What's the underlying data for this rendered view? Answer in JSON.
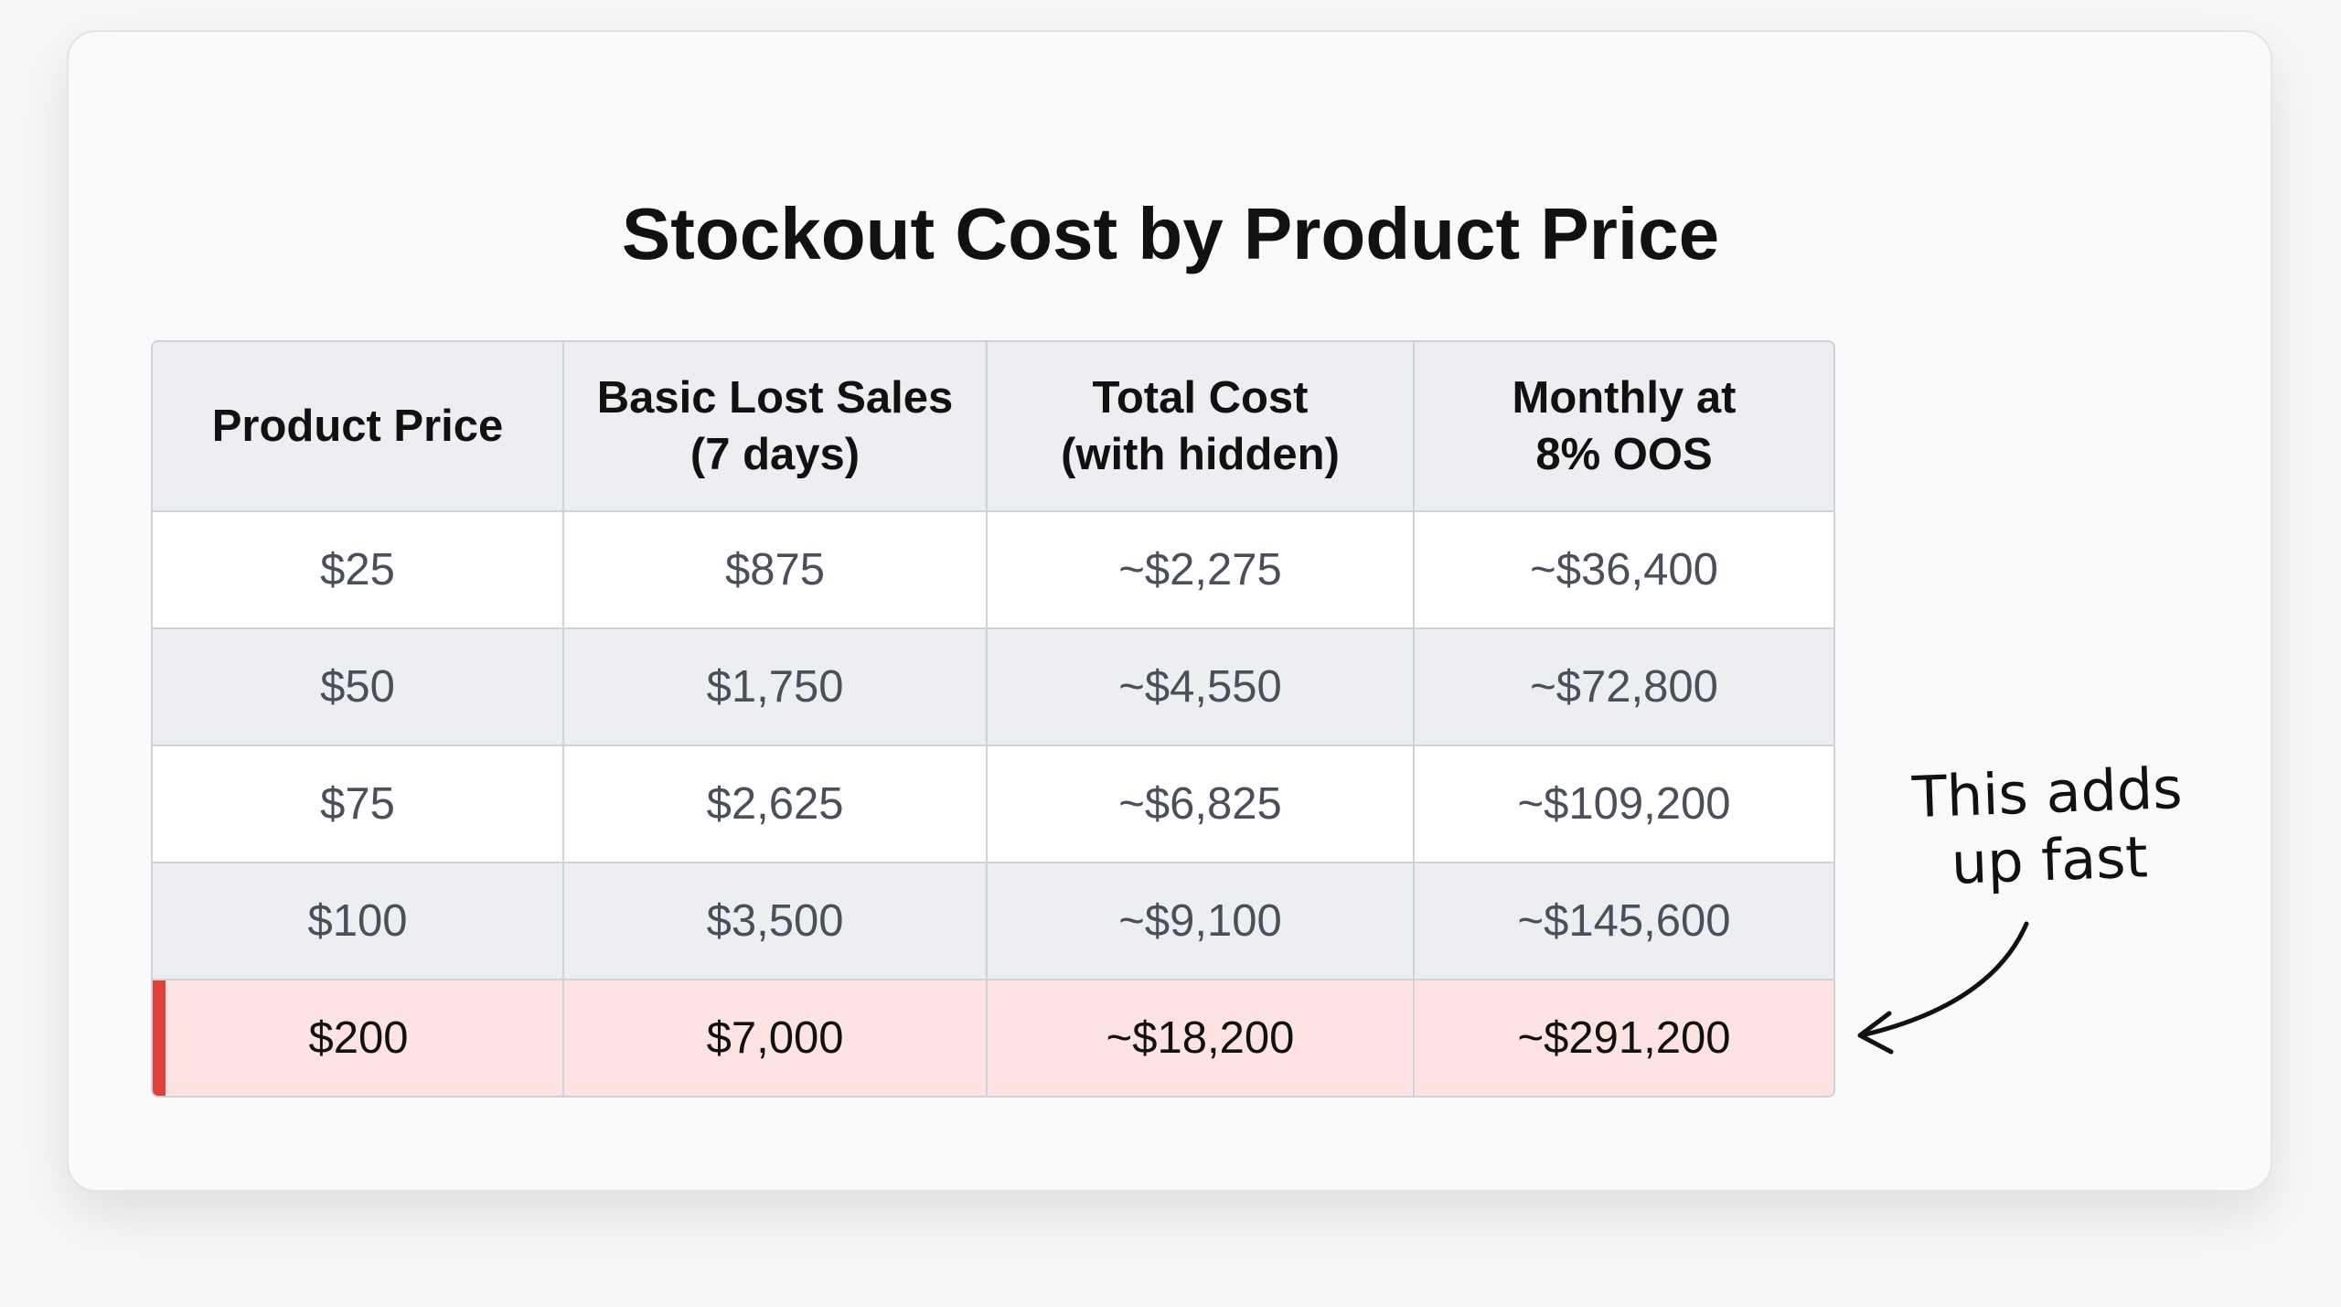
{
  "title": "Stockout Cost by Product Price",
  "table": {
    "header": [
      "Product Price",
      "Basic Lost Sales\n(7 days)",
      "Total Cost\n(with hidden)",
      "Monthly at\n8% OOS"
    ],
    "rows": [
      [
        "$25",
        "$875",
        "~$2,275",
        "~$36,400"
      ],
      [
        "$50",
        "$1,750",
        "~$4,550",
        "~$72,800"
      ],
      [
        "$75",
        "$2,625",
        "~$6,825",
        "~$109,200"
      ],
      [
        "$100",
        "$3,500",
        "~$9,100",
        "~$145,600"
      ],
      [
        "$200",
        "$7,000",
        "~$18,200",
        "~$291,200"
      ]
    ]
  },
  "annotation": "This adds\nup fast"
}
